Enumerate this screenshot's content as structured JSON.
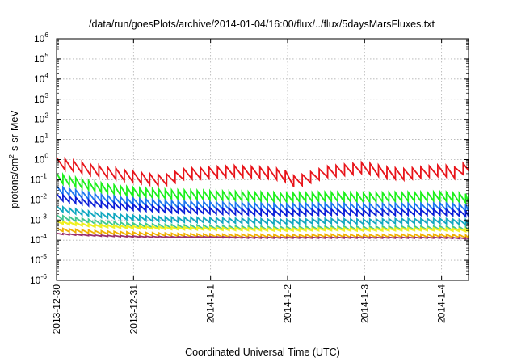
{
  "chart_data": {
    "type": "line",
    "title": "/data/run/goesPlots/archive/2014-01-04/16:00/flux/../flux/5daysMarsFluxes.txt",
    "xlabel": "Coordinated Universal Time (UTC)",
    "ylabel": "protons/cm2-s-sr-MeV",
    "ylabel_parts": {
      "base": "protons/cm",
      "sup": "2",
      "rest": "-s-sr-MeV"
    },
    "yscale": "log",
    "ylim_exponents": [
      -6,
      6
    ],
    "y_tick_labels": [
      {
        "base": "10",
        "exp": "-6"
      },
      {
        "base": "10",
        "exp": "-5"
      },
      {
        "base": "10",
        "exp": "-4"
      },
      {
        "base": "10",
        "exp": "-3"
      },
      {
        "base": "10",
        "exp": "-2"
      },
      {
        "base": "10",
        "exp": "-1"
      },
      {
        "base": "10",
        "exp": "0"
      },
      {
        "base": "10",
        "exp": "1"
      },
      {
        "base": "10",
        "exp": "2"
      },
      {
        "base": "10",
        "exp": "3"
      },
      {
        "base": "10",
        "exp": "4"
      },
      {
        "base": "10",
        "exp": "5"
      },
      {
        "base": "10",
        "exp": "6"
      }
    ],
    "x_tick_labels": [
      "2013-12-30",
      "2013-12-31",
      "2014-1-1",
      "2014-1-2",
      "2014-1-3",
      "2014-1-4"
    ],
    "xlim_days": [
      0,
      5.35
    ],
    "grid": true,
    "legend": "none",
    "series": [
      {
        "color": "#e8141a",
        "width": 1.8,
        "tooth_period_days": 0.11,
        "x": [
          0,
          0.5,
          1.0,
          1.3,
          1.5,
          1.6,
          1.9,
          2.3,
          2.8,
          3.0,
          3.1,
          3.5,
          4.0,
          4.3,
          4.5,
          5.0,
          5.2,
          5.35
        ],
        "y": [
          1.3,
          0.55,
          0.27,
          0.18,
          0.2,
          0.35,
          0.4,
          0.5,
          0.4,
          0.27,
          0.14,
          0.45,
          0.75,
          0.42,
          0.35,
          0.55,
          0.4,
          1.0
        ],
        "dip": 0.55
      },
      {
        "color": "#1bf01b",
        "width": 1.8,
        "tooth_period_days": 0.083,
        "x": [
          0,
          0.5,
          1.0,
          1.5,
          2.0,
          2.5,
          3.0,
          3.5,
          4.0,
          4.5,
          5.0,
          5.35
        ],
        "y": [
          0.21,
          0.075,
          0.04,
          0.031,
          0.028,
          0.025,
          0.022,
          0.024,
          0.022,
          0.024,
          0.025,
          0.02
        ],
        "dip": 0.45
      },
      {
        "color": "#1e78f0",
        "width": 1.8,
        "tooth_period_days": 0.083,
        "x": [
          0,
          0.5,
          1.0,
          1.5,
          2.0,
          2.5,
          3.0,
          3.5,
          4.0,
          4.5,
          5.0,
          5.35
        ],
        "y": [
          0.05,
          0.02,
          0.012,
          0.009,
          0.008,
          0.007,
          0.0065,
          0.007,
          0.0065,
          0.0068,
          0.007,
          0.006
        ],
        "dip": 0.35
      },
      {
        "color": "#0b1ed8",
        "width": 1.8,
        "tooth_period_days": 0.083,
        "x": [
          0,
          0.5,
          1.0,
          1.5,
          2.0,
          2.5,
          3.0,
          3.5,
          4.0,
          4.5,
          5.0,
          5.35
        ],
        "y": [
          0.02,
          0.009,
          0.006,
          0.0045,
          0.004,
          0.0035,
          0.0032,
          0.0035,
          0.0032,
          0.0034,
          0.0035,
          0.003
        ],
        "dip": 0.3
      },
      {
        "color": "#10a8c0",
        "width": 1.8,
        "tooth_period_days": 0.083,
        "x": [
          0,
          0.5,
          1.0,
          1.5,
          2.0,
          2.5,
          3.0,
          3.5,
          4.0,
          4.5,
          5.0,
          5.35
        ],
        "y": [
          0.005,
          0.0025,
          0.0017,
          0.0014,
          0.0013,
          0.0012,
          0.0011,
          0.0012,
          0.0011,
          0.0012,
          0.0012,
          0.001
        ],
        "dip": 0.25
      },
      {
        "color": "#40c890",
        "width": 1.8,
        "tooth_period_days": 0.083,
        "x": [
          0,
          0.5,
          1.0,
          1.5,
          2.0,
          2.5,
          3.0,
          3.5,
          4.0,
          4.5,
          5.0,
          5.35
        ],
        "y": [
          0.0018,
          0.001,
          0.0007,
          0.0006,
          0.00055,
          0.0005,
          0.00048,
          0.0005,
          0.00048,
          0.0005,
          0.0005,
          0.00045
        ],
        "dip": 0.2
      },
      {
        "color": "#f0f020",
        "width": 2.2,
        "tooth_period_days": 0.083,
        "x": [
          0,
          0.5,
          1.0,
          1.5,
          2.0,
          2.5,
          3.0,
          3.5,
          4.0,
          4.5,
          5.0,
          5.35
        ],
        "y": [
          0.0009,
          0.0006,
          0.0005,
          0.00045,
          0.00042,
          0.0004,
          0.00038,
          0.0004,
          0.00038,
          0.0004,
          0.0004,
          0.00035
        ],
        "dip": 0.12
      },
      {
        "color": "#f0b000",
        "width": 1.8,
        "tooth_period_days": 0.083,
        "x": [
          0,
          0.5,
          1.0,
          1.5,
          2.0,
          2.5,
          3.0,
          3.5,
          4.0,
          4.5,
          5.0,
          5.35
        ],
        "y": [
          0.0004,
          0.0003,
          0.00025,
          0.00022,
          0.0002,
          0.0002,
          0.00019,
          0.0002,
          0.00019,
          0.0002,
          0.0002,
          0.00018
        ],
        "dip": 0.15
      },
      {
        "color": "#9a3070",
        "width": 1.8,
        "tooth_period_days": 0.083,
        "x": [
          0,
          0.5,
          1.0,
          1.5,
          2.0,
          2.5,
          3.0,
          3.5,
          4.0,
          4.5,
          5.0,
          5.35
        ],
        "y": [
          0.00022,
          0.00018,
          0.00016,
          0.00015,
          0.00015,
          0.00014,
          0.00014,
          0.00014,
          0.00014,
          0.00014,
          0.00014,
          0.00013
        ],
        "dip": 0.05
      }
    ]
  }
}
